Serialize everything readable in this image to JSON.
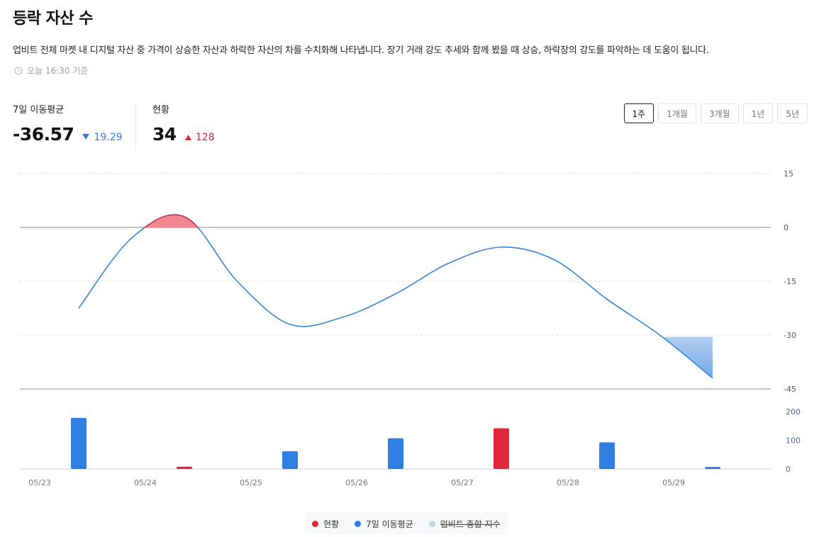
{
  "title": "등락 자산 수",
  "description": "업비트 전체 마켓 내 디지털 자산 중 가격이 상승한 자산과 하락한 자산의 차를 수치화해 나타냅니다. 장기 거래 강도 추세와 함께 봤을 때 상승, 하락장의 강도를 파악하는 데 도움이 됩니다.",
  "updated_at": "오늘 16:30 기준",
  "stats": {
    "ma7": {
      "label": "7일 이동평균",
      "value": "-36.57",
      "change": "19.29",
      "direction": "down"
    },
    "current": {
      "label": "현황",
      "value": "34",
      "change": "128",
      "direction": "up"
    }
  },
  "periods": [
    "1주",
    "1개월",
    "3개월",
    "1년",
    "5년"
  ],
  "selected_period": "1주",
  "colors": {
    "up": "#e3263a",
    "down": "#2f7ee0",
    "line": "#3a84d6",
    "index": "#b9cde3"
  },
  "legend": {
    "current": "현황",
    "ma7": "7일 이동평균",
    "index": "업비트 종합 지수"
  },
  "chart_data": [
    {
      "type": "line",
      "x": [
        "05/23 12:00",
        "05/24 00:00",
        "05/24 12:00",
        "05/25 00:00",
        "05/25 12:00",
        "05/26 00:00",
        "05/26 12:00",
        "05/27 00:00",
        "05/27 12:00",
        "05/28 00:00",
        "05/28 12:00",
        "05/29 00:00",
        "05/29 12:00"
      ],
      "series": [
        {
          "name": "7일 이동평균",
          "values": [
            -22.5,
            -3,
            3,
            -15,
            -27,
            -25,
            -18.5,
            -10,
            -5.5,
            -9,
            -20,
            -30,
            -42
          ]
        }
      ],
      "yticks": [
        15,
        0,
        -15,
        -30,
        -45
      ],
      "ylim": [
        -45,
        15
      ]
    },
    {
      "type": "bar",
      "categories": [
        "05/23",
        "05/24",
        "05/25",
        "05/26",
        "05/27",
        "05/28",
        "05/29"
      ],
      "series": [
        {
          "name": "현황",
          "values": [
            178,
            8,
            62,
            107,
            142,
            93,
            7
          ],
          "directions": [
            "down",
            "up",
            "down",
            "down",
            "up",
            "down",
            "down"
          ]
        }
      ],
      "yticks": [
        200,
        100,
        0
      ],
      "ylim": [
        0,
        200
      ]
    }
  ],
  "xaxis_labels": [
    "05/23",
    "05/24",
    "05/25",
    "05/26",
    "05/27",
    "05/28",
    "05/29"
  ]
}
